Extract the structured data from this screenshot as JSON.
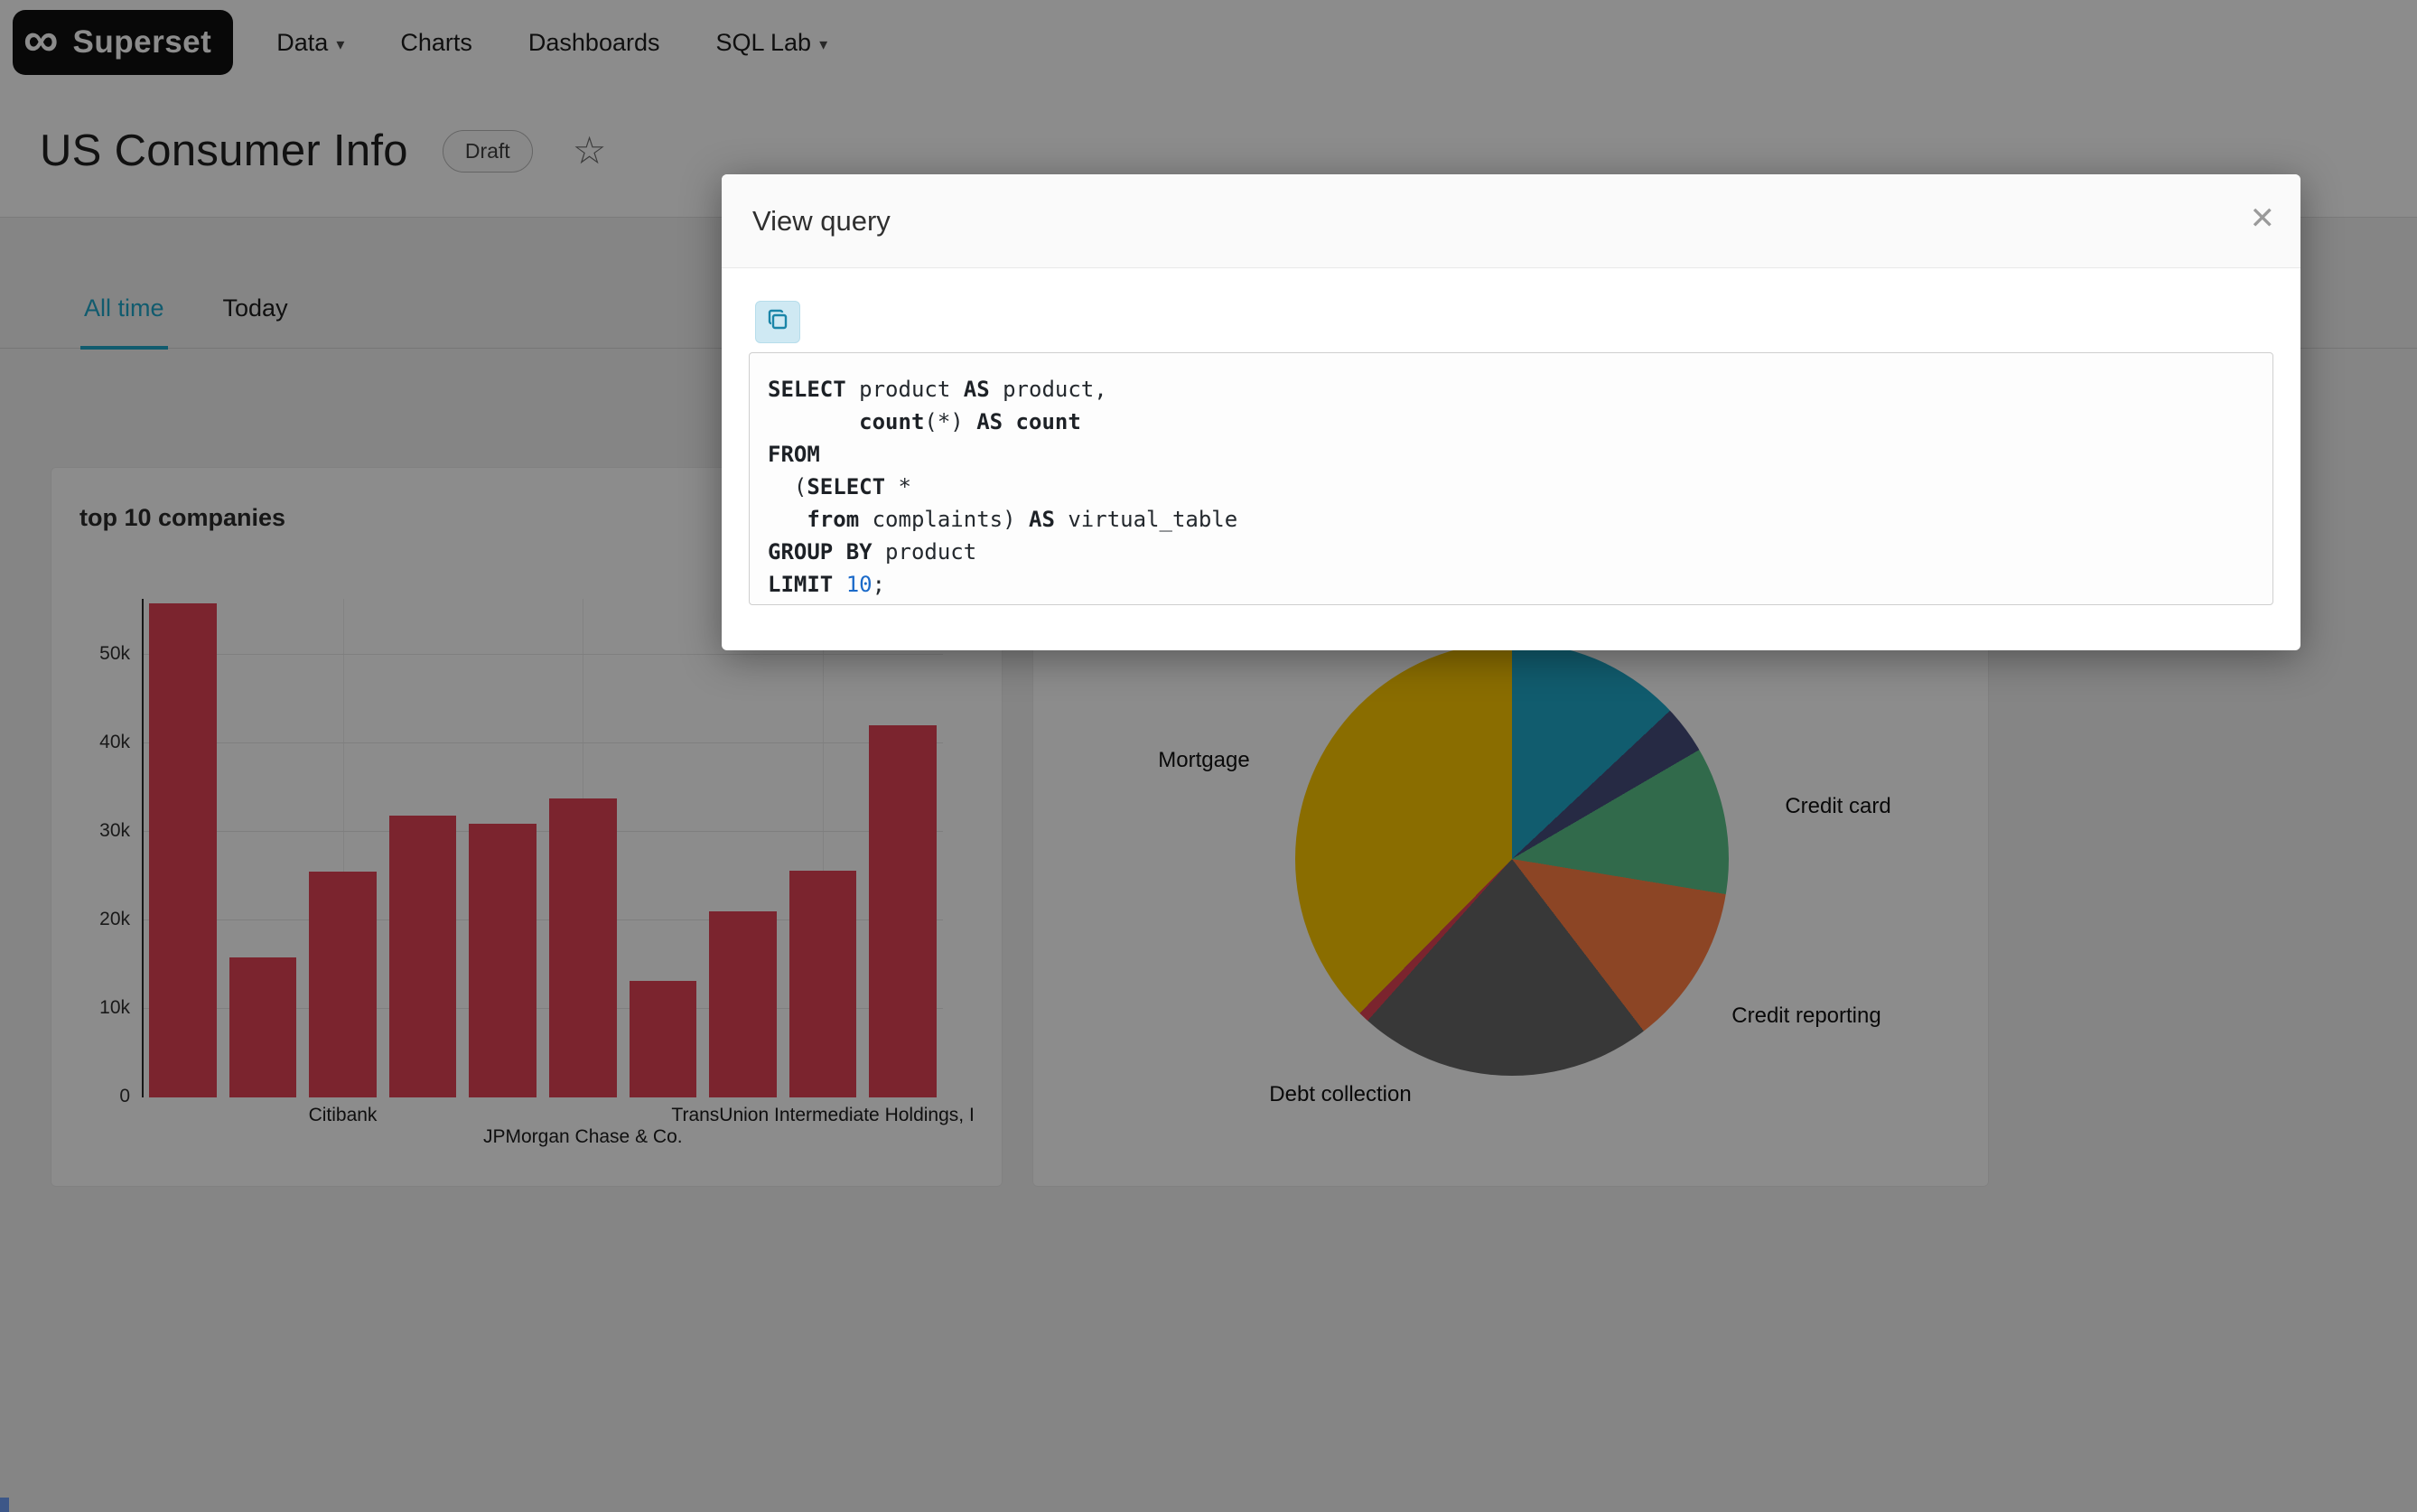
{
  "navbar": {
    "brand": "Superset",
    "items": [
      {
        "label": "Data",
        "has_caret": true
      },
      {
        "label": "Charts",
        "has_caret": false
      },
      {
        "label": "Dashboards",
        "has_caret": false
      },
      {
        "label": "SQL Lab",
        "has_caret": true
      }
    ]
  },
  "icons": {
    "infinity": "∞",
    "caret": "▾",
    "star": "☆",
    "close": "✕"
  },
  "header": {
    "title": "US Consumer Info",
    "status_badge": "Draft"
  },
  "tabs": [
    {
      "label": "All time",
      "active": true
    },
    {
      "label": "Today",
      "active": false
    }
  ],
  "colors": {
    "accent": "#20a7c9",
    "overlay": "rgba(0,0,0,0.45)"
  },
  "modal": {
    "title": "View query",
    "sql_lines": [
      [
        [
          "kw",
          "SELECT"
        ],
        [
          "pl",
          " product "
        ],
        [
          "kw",
          "AS"
        ],
        [
          "pl",
          " product,"
        ]
      ],
      [
        [
          "pl",
          "       "
        ],
        [
          "kw",
          "count"
        ],
        [
          "pl",
          "(*) "
        ],
        [
          "kw",
          "AS"
        ],
        [
          "kw",
          " count"
        ]
      ],
      [
        [
          "kw",
          "FROM"
        ]
      ],
      [
        [
          "pl",
          "  ("
        ],
        [
          "kw",
          "SELECT"
        ],
        [
          "pl",
          " *"
        ]
      ],
      [
        [
          "pl",
          "   "
        ],
        [
          "kw",
          "from"
        ],
        [
          "pl",
          " complaints) "
        ],
        [
          "kw",
          "AS"
        ],
        [
          "pl",
          " virtual_table"
        ]
      ],
      [
        [
          "kw",
          "GROUP BY"
        ],
        [
          "pl",
          " product"
        ]
      ],
      [
        [
          "kw",
          "LIMIT"
        ],
        [
          "pl",
          " "
        ],
        [
          "num",
          "10"
        ],
        [
          "pl",
          ";"
        ]
      ]
    ]
  },
  "chart_data": [
    {
      "type": "bar",
      "title": "top 10 companies",
      "values": [
        55800,
        15800,
        25500,
        31800,
        30900,
        33800,
        13200,
        21000,
        25600,
        42000
      ],
      "bar_color": "#E04355",
      "ylim": [
        0,
        56000
      ],
      "yticks": [
        "0",
        "10k",
        "20k",
        "30k",
        "40k",
        "50k"
      ],
      "ytick_values": [
        0,
        10000,
        20000,
        30000,
        40000,
        50000
      ],
      "grid": true,
      "x_axis_labels": [
        {
          "text": "Citibank",
          "bar_index": 2,
          "row": 1
        },
        {
          "text": "JPMorgan Chase & Co.",
          "bar_index": 5,
          "row": 2
        },
        {
          "text": "TransUnion Intermediate Holdings, I",
          "bar_index": 8,
          "row": 1
        }
      ]
    },
    {
      "type": "pie",
      "slices": [
        {
          "label": "",
          "value": 13,
          "color": "#1FA8C9"
        },
        {
          "label": "",
          "value": 3.6,
          "color": "#454E7C"
        },
        {
          "label": "Credit card",
          "value": 11,
          "color": "#5AC189"
        },
        {
          "label": "Credit reporting",
          "value": 12,
          "color": "#FF7F44"
        },
        {
          "label": "Debt collection",
          "value": 22,
          "color": "#666666"
        },
        {
          "label": "",
          "value": 0.8,
          "color": "#E04355"
        },
        {
          "label": "Mortgage",
          "value": 37.6,
          "color": "#FCC700"
        }
      ]
    }
  ]
}
